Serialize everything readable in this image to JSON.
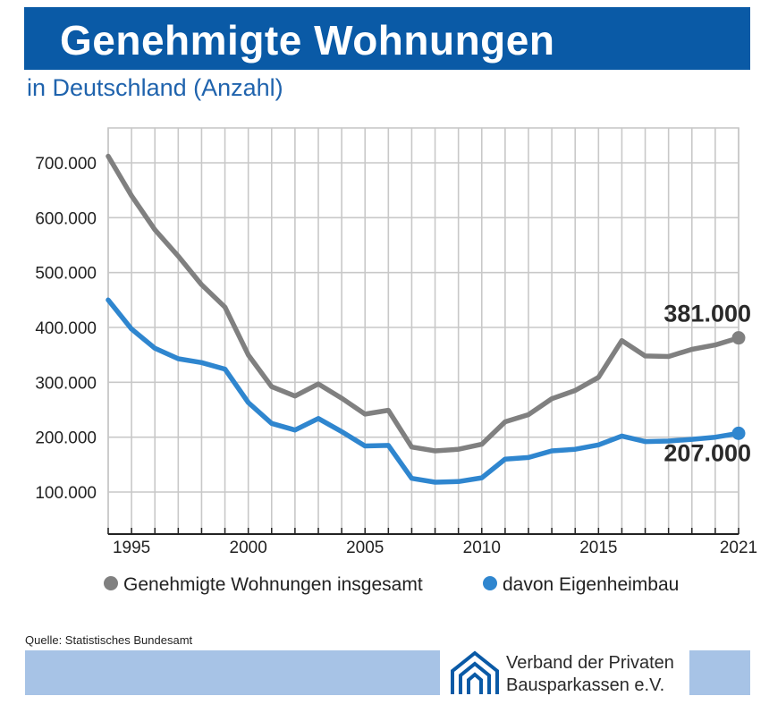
{
  "header": {
    "title": "Genehmigte Wohnungen",
    "subtitle": "in Deutschland (Anzahl)"
  },
  "footer": {
    "source": "Quelle: Statistisches Bundesamt",
    "logo_line1": "Verband der Privaten",
    "logo_line2": "Bausparkassen e.V."
  },
  "colors": {
    "brand_blue": "#0a5aa6",
    "series_total": "#808080",
    "series_own": "#2f86cf",
    "band": "#a7c3e6"
  },
  "chart_data": {
    "type": "line",
    "title": "Genehmigte Wohnungen",
    "subtitle": "in Deutschland (Anzahl)",
    "xlabel": "",
    "ylabel": "",
    "x": [
      1994,
      1995,
      1996,
      1997,
      1998,
      1999,
      2000,
      2001,
      2002,
      2003,
      2004,
      2005,
      2006,
      2007,
      2008,
      2009,
      2010,
      2011,
      2012,
      2013,
      2014,
      2015,
      2016,
      2017,
      2018,
      2019,
      2020,
      2021
    ],
    "xlim": [
      1994,
      2021
    ],
    "ylim": [
      0,
      720000
    ],
    "x_ticks": [
      1995,
      2000,
      2005,
      2010,
      2015,
      2021
    ],
    "x_tick_labels": [
      "1995",
      "2000",
      "2005",
      "2010",
      "2015",
      "2021"
    ],
    "y_ticks": [
      100000,
      200000,
      300000,
      400000,
      500000,
      600000,
      700000
    ],
    "y_tick_labels": [
      "100.000",
      "200.000",
      "300.000",
      "400.000",
      "500.000",
      "600.000",
      "700.000"
    ],
    "grid": true,
    "legend_position": "bottom",
    "series": [
      {
        "name": "Genehmigte Wohnungen insgesamt",
        "color": "#808080",
        "values": [
          712000,
          640000,
          578000,
          530000,
          478000,
          437000,
          350000,
          292000,
          275000,
          297000,
          271000,
          242000,
          249000,
          182000,
          175000,
          178000,
          187000,
          228000,
          241000,
          270000,
          285000,
          309000,
          376000,
          348000,
          347000,
          360000,
          368000,
          381000
        ],
        "end_label": "381.000"
      },
      {
        "name": "davon Eigenheimbau",
        "color": "#2f86cf",
        "values": [
          450000,
          397000,
          362000,
          343000,
          336000,
          324000,
          263000,
          225000,
          213000,
          234000,
          210000,
          184000,
          185000,
          125000,
          118000,
          119000,
          126000,
          160000,
          163000,
          175000,
          178000,
          186000,
          202000,
          192000,
          193000,
          196000,
          200000,
          207000
        ],
        "end_label": "207.000"
      }
    ]
  }
}
